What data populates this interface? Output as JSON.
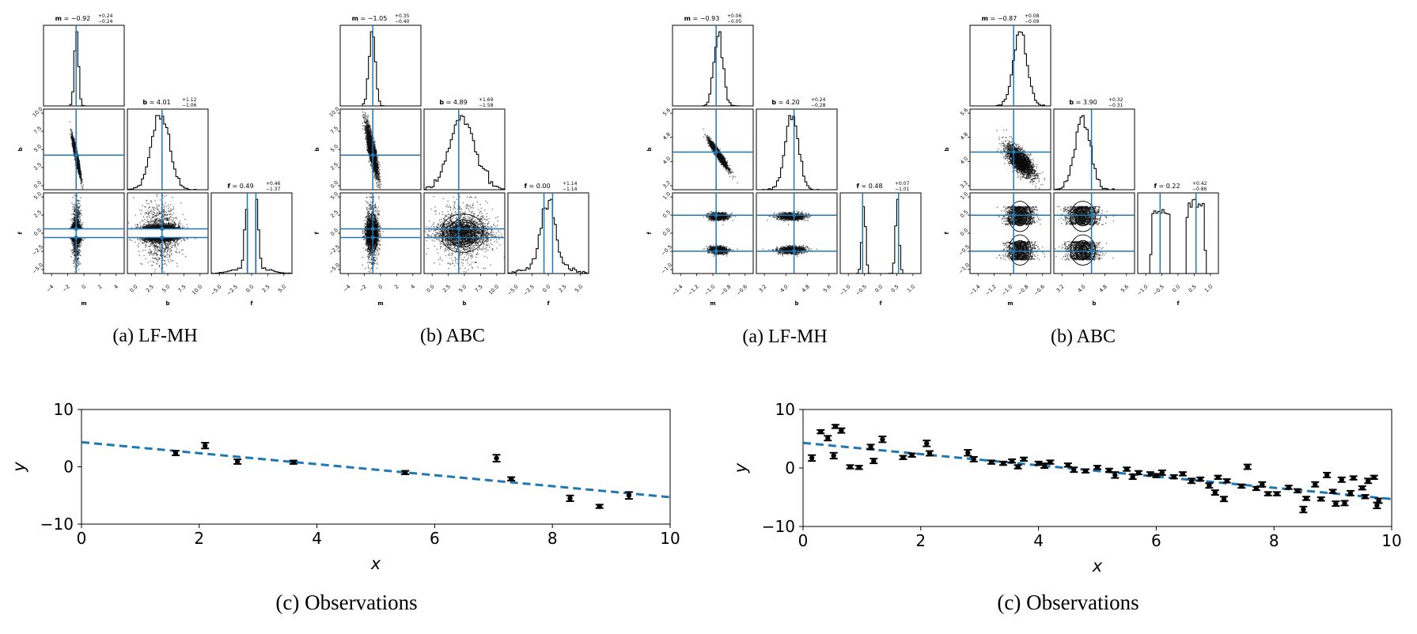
{
  "chart_data": [
    {
      "type": "corner",
      "caption": "(a) LF-MH",
      "params": [
        "m",
        "b",
        "f"
      ],
      "truths": {
        "m": -0.9594,
        "b": 4.294,
        "f": [
          0.534,
          -0.534
        ]
      },
      "titles": [
        {
          "name": "m",
          "value": "−0.92",
          "up": "+0.24",
          "down": "−0.24"
        },
        {
          "name": "b",
          "value": "4.01",
          "up": "+1.12",
          "down": "−1.06"
        },
        {
          "name": "f",
          "value": "0.49",
          "up": "+0.46",
          "down": "−1.37"
        }
      ],
      "ranges": {
        "m": [
          -5,
          5
        ],
        "b": [
          0,
          10
        ],
        "f": [
          -5,
          5
        ]
      },
      "ticks": {
        "m": [
          "−4",
          "−2",
          "0",
          "2",
          "4"
        ],
        "b": [
          "0.0",
          "2.5",
          "5.0",
          "7.5",
          "10.0"
        ],
        "f": [
          "−5.0",
          "−2.5",
          "0.0",
          "2.5",
          "5.0"
        ],
        "b_left": [
          "0.0",
          "2.5",
          "5.0",
          "7.5",
          "10.0"
        ],
        "f_left": [
          "−5.0",
          "−2.5",
          "0.0",
          "2.5",
          "5.0"
        ]
      }
    },
    {
      "type": "corner",
      "caption": "(b) ABC",
      "params": [
        "m",
        "b",
        "f"
      ],
      "truths": {
        "m": -0.9594,
        "b": 4.294,
        "f": [
          0.534,
          -0.534
        ]
      },
      "titles": [
        {
          "name": "m",
          "value": "−1.05",
          "up": "+0.35",
          "down": "−0.40"
        },
        {
          "name": "b",
          "value": "4.89",
          "up": "+1.69",
          "down": "−1.58"
        },
        {
          "name": "f",
          "value": "0.00",
          "up": "+1.14",
          "down": "−1.14"
        }
      ],
      "ranges": {
        "m": [
          -5,
          5
        ],
        "b": [
          0,
          10
        ],
        "f": [
          -5,
          5
        ]
      },
      "ticks": {
        "m": [
          "−4",
          "−2",
          "0",
          "2",
          "4"
        ],
        "b": [
          "0.0",
          "2.5",
          "5.0",
          "7.5",
          "10.0"
        ],
        "f": [
          "−5.0",
          "−2.5",
          "0.0",
          "2.5",
          "5.0"
        ],
        "b_left": [
          "0.0",
          "2.5",
          "5.0",
          "7.5",
          "10.0"
        ],
        "f_left": [
          "−5.0",
          "−2.5",
          "0.0",
          "2.5",
          "5.0"
        ]
      }
    },
    {
      "type": "corner",
      "caption": "(a) LF-MH",
      "params": [
        "m",
        "b",
        "f"
      ],
      "truths": {
        "m": -0.9594,
        "b": 4.294,
        "f": [
          0.534,
          -0.534
        ]
      },
      "titles": [
        {
          "name": "m",
          "value": "−0.93",
          "up": "+0.06",
          "down": "−0.05"
        },
        {
          "name": "b",
          "value": "4.20",
          "up": "+0.24",
          "down": "−0.28"
        },
        {
          "name": "f",
          "value": "0.48",
          "up": "+0.07",
          "down": "−1.01"
        }
      ],
      "ranges": {
        "m": [
          -1.5,
          -0.5
        ],
        "b": [
          2.8,
          6.0
        ],
        "f": [
          -1.2,
          1.2
        ]
      },
      "ticks": {
        "m": [
          "−1.4",
          "−1.2",
          "−1.0",
          "−0.8",
          "−0.6"
        ],
        "b": [
          "3.2",
          "4.0",
          "4.8",
          "5.6"
        ],
        "f": [
          "−1.0",
          "−0.5",
          "0.0",
          "0.5",
          "1.0"
        ],
        "b_left": [
          "3.2",
          "4.0",
          "4.8",
          "5.6"
        ],
        "f_left": [
          "−1.0",
          "−0.5",
          "0.0",
          "0.5",
          "1.0"
        ]
      }
    },
    {
      "type": "corner",
      "caption": "(b) ABC",
      "params": [
        "m",
        "b",
        "f"
      ],
      "truths": {
        "m": -0.9594,
        "b": 4.294,
        "f": [
          0.534,
          -0.534
        ]
      },
      "titles": [
        {
          "name": "m",
          "value": "−0.87",
          "up": "+0.08",
          "down": "−0.09"
        },
        {
          "name": "b",
          "value": "3.90",
          "up": "+0.32",
          "down": "−0.31"
        },
        {
          "name": "f",
          "value": "0.22",
          "up": "+0.42",
          "down": "−0.86"
        }
      ],
      "ranges": {
        "m": [
          -1.5,
          -0.5
        ],
        "b": [
          2.8,
          6.0
        ],
        "f": [
          -1.2,
          1.2
        ]
      },
      "ticks": {
        "m": [
          "−1.4",
          "−1.2",
          "−1.0",
          "−0.8",
          "−0.6"
        ],
        "b": [
          "3.2",
          "4.0",
          "4.8",
          "5.6"
        ],
        "f": [
          "−1.0",
          "−0.5",
          "0.0",
          "0.5",
          "1.0"
        ],
        "b_left": [
          "3.2",
          "4.0",
          "4.8",
          "5.6"
        ],
        "f_left": [
          "−1.0",
          "−0.5",
          "0.0",
          "0.5",
          "1.0"
        ]
      }
    },
    {
      "type": "scatter",
      "caption": "(c) Observations",
      "xlabel": "x",
      "ylabel": "y",
      "xlim": [
        0,
        10
      ],
      "ylim": [
        -10,
        10
      ],
      "xticks": [
        "0",
        "2",
        "4",
        "6",
        "8",
        "10"
      ],
      "yticks": [
        "−10",
        "0",
        "10"
      ],
      "line": {
        "m": -0.9594,
        "b": 4.294,
        "style": "dashed",
        "color": "#1f77b4"
      },
      "points": [
        {
          "x": 1.6,
          "y": 2.4,
          "err": 0.4
        },
        {
          "x": 2.1,
          "y": 3.7,
          "err": 0.5
        },
        {
          "x": 2.65,
          "y": 0.9,
          "err": 0.4
        },
        {
          "x": 3.6,
          "y": 0.8,
          "err": 0.3
        },
        {
          "x": 5.5,
          "y": -1.0,
          "err": 0.3
        },
        {
          "x": 7.05,
          "y": 1.5,
          "err": 0.6
        },
        {
          "x": 7.3,
          "y": -2.1,
          "err": 0.3
        },
        {
          "x": 8.3,
          "y": -5.5,
          "err": 0.5
        },
        {
          "x": 8.8,
          "y": -6.9,
          "err": 0.3
        },
        {
          "x": 9.3,
          "y": -5.0,
          "err": 0.6
        }
      ]
    },
    {
      "type": "scatter",
      "caption": "(c) Observations",
      "xlabel": "x",
      "ylabel": "y",
      "xlim": [
        0,
        10
      ],
      "ylim": [
        -10,
        10
      ],
      "xticks": [
        "0",
        "2",
        "4",
        "6",
        "8",
        "10"
      ],
      "yticks": [
        "−10",
        "0",
        "10"
      ],
      "line": {
        "m": -0.9594,
        "b": 4.294,
        "style": "dashed",
        "color": "#1f77b4"
      },
      "points": [
        {
          "x": 0.15,
          "y": 1.7,
          "err": 0.5
        },
        {
          "x": 0.3,
          "y": 6.2,
          "err": 0.3
        },
        {
          "x": 0.42,
          "y": 5.1,
          "err": 0.4
        },
        {
          "x": 0.52,
          "y": 2.1,
          "err": 0.5
        },
        {
          "x": 0.55,
          "y": 7.1,
          "err": 0.3
        },
        {
          "x": 0.65,
          "y": 6.4,
          "err": 0.4
        },
        {
          "x": 0.8,
          "y": 0.2,
          "err": 0.3
        },
        {
          "x": 0.95,
          "y": 0.1,
          "err": 0.3
        },
        {
          "x": 1.15,
          "y": 3.6,
          "err": 0.4
        },
        {
          "x": 1.2,
          "y": 1.2,
          "err": 0.4
        },
        {
          "x": 1.35,
          "y": 4.9,
          "err": 0.5
        },
        {
          "x": 1.7,
          "y": 1.8,
          "err": 0.3
        },
        {
          "x": 1.85,
          "y": 2.2,
          "err": 0.3
        },
        {
          "x": 2.1,
          "y": 4.2,
          "err": 0.5
        },
        {
          "x": 2.15,
          "y": 2.5,
          "err": 0.4
        },
        {
          "x": 2.8,
          "y": 2.6,
          "err": 0.5
        },
        {
          "x": 2.9,
          "y": 1.5,
          "err": 0.4
        },
        {
          "x": 3.2,
          "y": 1.0,
          "err": 0.3
        },
        {
          "x": 3.4,
          "y": 0.8,
          "err": 0.3
        },
        {
          "x": 3.55,
          "y": 1.2,
          "err": 0.3
        },
        {
          "x": 3.65,
          "y": 0.2,
          "err": 0.3
        },
        {
          "x": 3.75,
          "y": 1.5,
          "err": 0.3
        },
        {
          "x": 4.0,
          "y": 0.8,
          "err": 0.3
        },
        {
          "x": 4.1,
          "y": 0.4,
          "err": 0.4
        },
        {
          "x": 4.2,
          "y": 1.0,
          "err": 0.3
        },
        {
          "x": 4.5,
          "y": 0.5,
          "err": 0.3
        },
        {
          "x": 4.6,
          "y": -0.3,
          "err": 0.4
        },
        {
          "x": 4.8,
          "y": -0.5,
          "err": 0.3
        },
        {
          "x": 5.0,
          "y": 0.1,
          "err": 0.3
        },
        {
          "x": 5.2,
          "y": -0.4,
          "err": 0.3
        },
        {
          "x": 5.3,
          "y": -1.2,
          "err": 0.5
        },
        {
          "x": 5.5,
          "y": -0.2,
          "err": 0.3
        },
        {
          "x": 5.6,
          "y": -1.5,
          "err": 0.4
        },
        {
          "x": 5.7,
          "y": -0.8,
          "err": 0.3
        },
        {
          "x": 5.9,
          "y": -1.0,
          "err": 0.3
        },
        {
          "x": 6.0,
          "y": -1.3,
          "err": 0.3
        },
        {
          "x": 6.1,
          "y": -0.8,
          "err": 0.4
        },
        {
          "x": 6.3,
          "y": -1.5,
          "err": 0.3
        },
        {
          "x": 6.45,
          "y": -1.0,
          "err": 0.3
        },
        {
          "x": 6.6,
          "y": -2.2,
          "err": 0.4
        },
        {
          "x": 6.75,
          "y": -1.9,
          "err": 0.3
        },
        {
          "x": 6.9,
          "y": -3.0,
          "err": 0.4
        },
        {
          "x": 7.0,
          "y": -4.2,
          "err": 0.4
        },
        {
          "x": 7.05,
          "y": -1.6,
          "err": 0.3
        },
        {
          "x": 7.15,
          "y": -5.3,
          "err": 0.4
        },
        {
          "x": 7.2,
          "y": -2.2,
          "err": 0.3
        },
        {
          "x": 7.45,
          "y": -3.1,
          "err": 0.3
        },
        {
          "x": 7.55,
          "y": 0.2,
          "err": 0.4
        },
        {
          "x": 7.7,
          "y": -3.5,
          "err": 0.3
        },
        {
          "x": 7.8,
          "y": -2.8,
          "err": 0.4
        },
        {
          "x": 7.9,
          "y": -4.4,
          "err": 0.3
        },
        {
          "x": 8.05,
          "y": -4.4,
          "err": 0.3
        },
        {
          "x": 8.25,
          "y": -3.3,
          "err": 0.3
        },
        {
          "x": 8.4,
          "y": -3.9,
          "err": 0.3
        },
        {
          "x": 8.5,
          "y": -7.1,
          "err": 0.5
        },
        {
          "x": 8.55,
          "y": -5.2,
          "err": 0.3
        },
        {
          "x": 8.7,
          "y": -2.8,
          "err": 0.4
        },
        {
          "x": 8.8,
          "y": -5.3,
          "err": 0.3
        },
        {
          "x": 8.9,
          "y": -1.2,
          "err": 0.4
        },
        {
          "x": 9.0,
          "y": -4.0,
          "err": 0.3
        },
        {
          "x": 9.05,
          "y": -6.1,
          "err": 0.4
        },
        {
          "x": 9.15,
          "y": -2.0,
          "err": 0.4
        },
        {
          "x": 9.2,
          "y": -6.0,
          "err": 0.4
        },
        {
          "x": 9.3,
          "y": -4.3,
          "err": 0.4
        },
        {
          "x": 9.35,
          "y": -1.7,
          "err": 0.3
        },
        {
          "x": 9.5,
          "y": -3.4,
          "err": 0.3
        },
        {
          "x": 9.55,
          "y": -4.9,
          "err": 0.3
        },
        {
          "x": 9.6,
          "y": -2.2,
          "err": 0.4
        },
        {
          "x": 9.7,
          "y": -1.6,
          "err": 0.3
        },
        {
          "x": 9.75,
          "y": -6.4,
          "err": 0.5
        },
        {
          "x": 9.78,
          "y": -5.6,
          "err": 0.4
        }
      ]
    }
  ]
}
